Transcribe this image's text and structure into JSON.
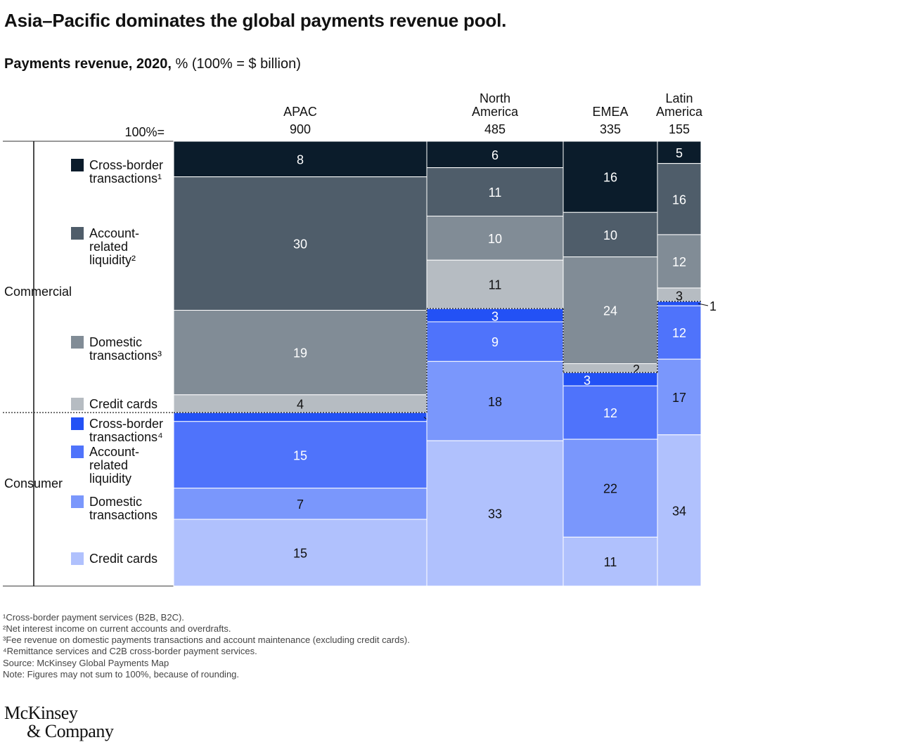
{
  "title": "Asia–Pacific dominates the global payments revenue pool.",
  "subtitle_bold": "Payments revenue, 2020,",
  "subtitle_rest": " % (100% = $ billion)",
  "chart_data": {
    "type": "marimekko",
    "total_label": "100%=",
    "groups": [
      "Commercial",
      "Consumer"
    ],
    "categories": [
      {
        "name": "Cross-border transactions",
        "footnote": "1",
        "group": "Commercial",
        "color": "#0b1c2b"
      },
      {
        "name": "Account-related liquidity",
        "footnote": "2",
        "group": "Commercial",
        "color": "#4f5d6a"
      },
      {
        "name": "Domestic transactions",
        "footnote": "3",
        "group": "Commercial",
        "color": "#818c96"
      },
      {
        "name": "Credit cards",
        "footnote": "",
        "group": "Commercial",
        "color": "#b6bcc2"
      },
      {
        "name": "Cross-border transactions",
        "footnote": "4",
        "group": "Consumer",
        "color": "#2351f5"
      },
      {
        "name": "Account-related liquidity",
        "footnote": "",
        "group": "Consumer",
        "color": "#4f73fb"
      },
      {
        "name": "Domestic transactions",
        "footnote": "",
        "group": "Consumer",
        "color": "#7a97fc"
      },
      {
        "name": "Credit cards",
        "footnote": "",
        "group": "Consumer",
        "color": "#b0c1fd"
      }
    ],
    "legend_lines": [
      [
        "Cross-border",
        "transactions¹"
      ],
      [
        "Account-",
        "related",
        "liquidity²"
      ],
      [
        "Domestic",
        "transactions³"
      ],
      [
        "Credit cards"
      ],
      [
        "Cross-border",
        "transactions⁴"
      ],
      [
        "Account-",
        "related",
        "liquidity"
      ],
      [
        "Domestic",
        "transactions"
      ],
      [
        "Credit cards"
      ]
    ],
    "regions": [
      {
        "name_lines": [
          "APAC"
        ],
        "total": "900",
        "values": [
          8,
          30,
          19,
          4,
          2,
          15,
          7,
          15
        ]
      },
      {
        "name_lines": [
          "North",
          "America"
        ],
        "total": "485",
        "values": [
          6,
          11,
          10,
          11,
          3,
          9,
          18,
          33
        ]
      },
      {
        "name_lines": [
          "EMEA"
        ],
        "total": "335",
        "values": [
          16,
          10,
          24,
          2,
          3,
          12,
          22,
          11
        ]
      },
      {
        "name_lines": [
          "Latin",
          "America"
        ],
        "total": "155",
        "values": [
          5,
          16,
          12,
          3,
          1,
          12,
          17,
          34
        ]
      }
    ]
  },
  "footnotes": [
    "¹Cross-border payment services (B2B, B2C).",
    "²Net interest income on current accounts and overdrafts.",
    "³Fee revenue on domestic payments transactions and account maintenance (excluding credit cards).",
    "⁴Remittance services and C2B cross-border payment services.",
    " Source: McKinsey Global Payments Map",
    " Note: Figures may not sum to 100%, because of rounding."
  ],
  "logo": [
    "McKinsey",
    "& Company"
  ]
}
